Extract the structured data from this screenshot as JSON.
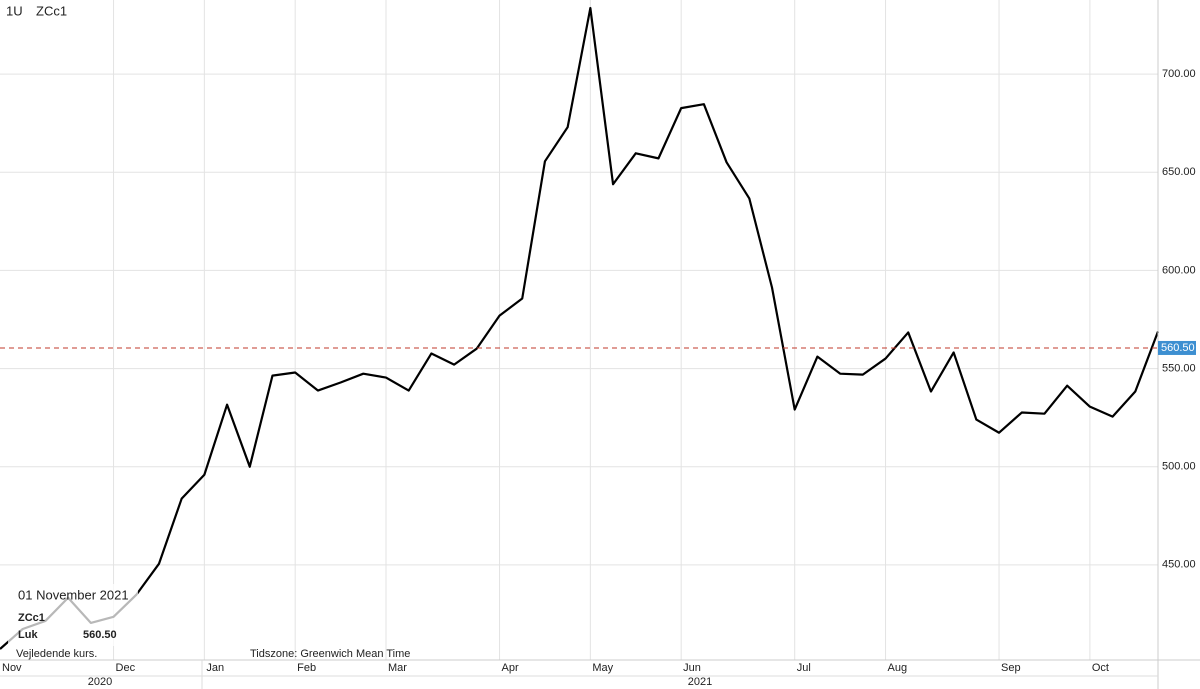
{
  "chart_data": {
    "type": "line",
    "interval": "1U",
    "symbol": "ZCc1",
    "color": "#000000",
    "grid": true,
    "categories": [
      "Nov",
      null,
      null,
      null,
      null,
      "Dec",
      null,
      null,
      null,
      "Jan",
      null,
      null,
      null,
      "Feb",
      null,
      null,
      null,
      "Mar",
      null,
      null,
      null,
      null,
      "Apr",
      null,
      null,
      null,
      "May",
      null,
      null,
      null,
      "Jun",
      null,
      null,
      null,
      null,
      "Jul",
      null,
      null,
      null,
      "Aug",
      null,
      null,
      null,
      null,
      "Sep",
      null,
      null,
      null,
      "Oct",
      null,
      null,
      null
    ],
    "values": [
      407.1,
      417.3,
      421.4,
      433.2,
      420.4,
      423.5,
      434.7,
      450.5,
      483.7,
      495.9,
      531.6,
      500.0,
      546.4,
      548.0,
      538.8,
      542.9,
      547.4,
      545.4,
      538.8,
      557.7,
      552.0,
      560.2,
      577.0,
      585.7,
      655.6,
      673.0,
      733.7,
      643.9,
      659.7,
      657.1,
      682.7,
      684.7,
      655.1,
      636.7,
      591.3,
      529.1,
      556.1,
      547.4,
      546.9,
      555.1,
      568.4,
      538.3,
      558.2,
      524.0,
      517.3,
      527.6,
      527.0,
      541.3,
      530.6,
      525.5,
      538.3,
      568.9
    ],
    "years": [
      "2020",
      "2021"
    ],
    "ylim": [
      401.5,
      737.8
    ],
    "yticks": [
      {
        "value": 450,
        "label": "450.00"
      },
      {
        "value": 500,
        "label": "500.00"
      },
      {
        "value": 550,
        "label": "550.00"
      },
      {
        "value": 600,
        "label": "600.00"
      },
      {
        "value": 650,
        "label": "650.00"
      },
      {
        "value": 700,
        "label": "700.00"
      }
    ],
    "last_price": {
      "value": 560.5,
      "label": "560.50",
      "color": "#c0392b"
    },
    "tooltip": {
      "date": "01 November 2021",
      "symbol": "ZCc1",
      "field": "Luk"
    },
    "notes": [
      "Vejledende kurs.",
      "Tidszone: Greenwich Mean Time"
    ]
  }
}
